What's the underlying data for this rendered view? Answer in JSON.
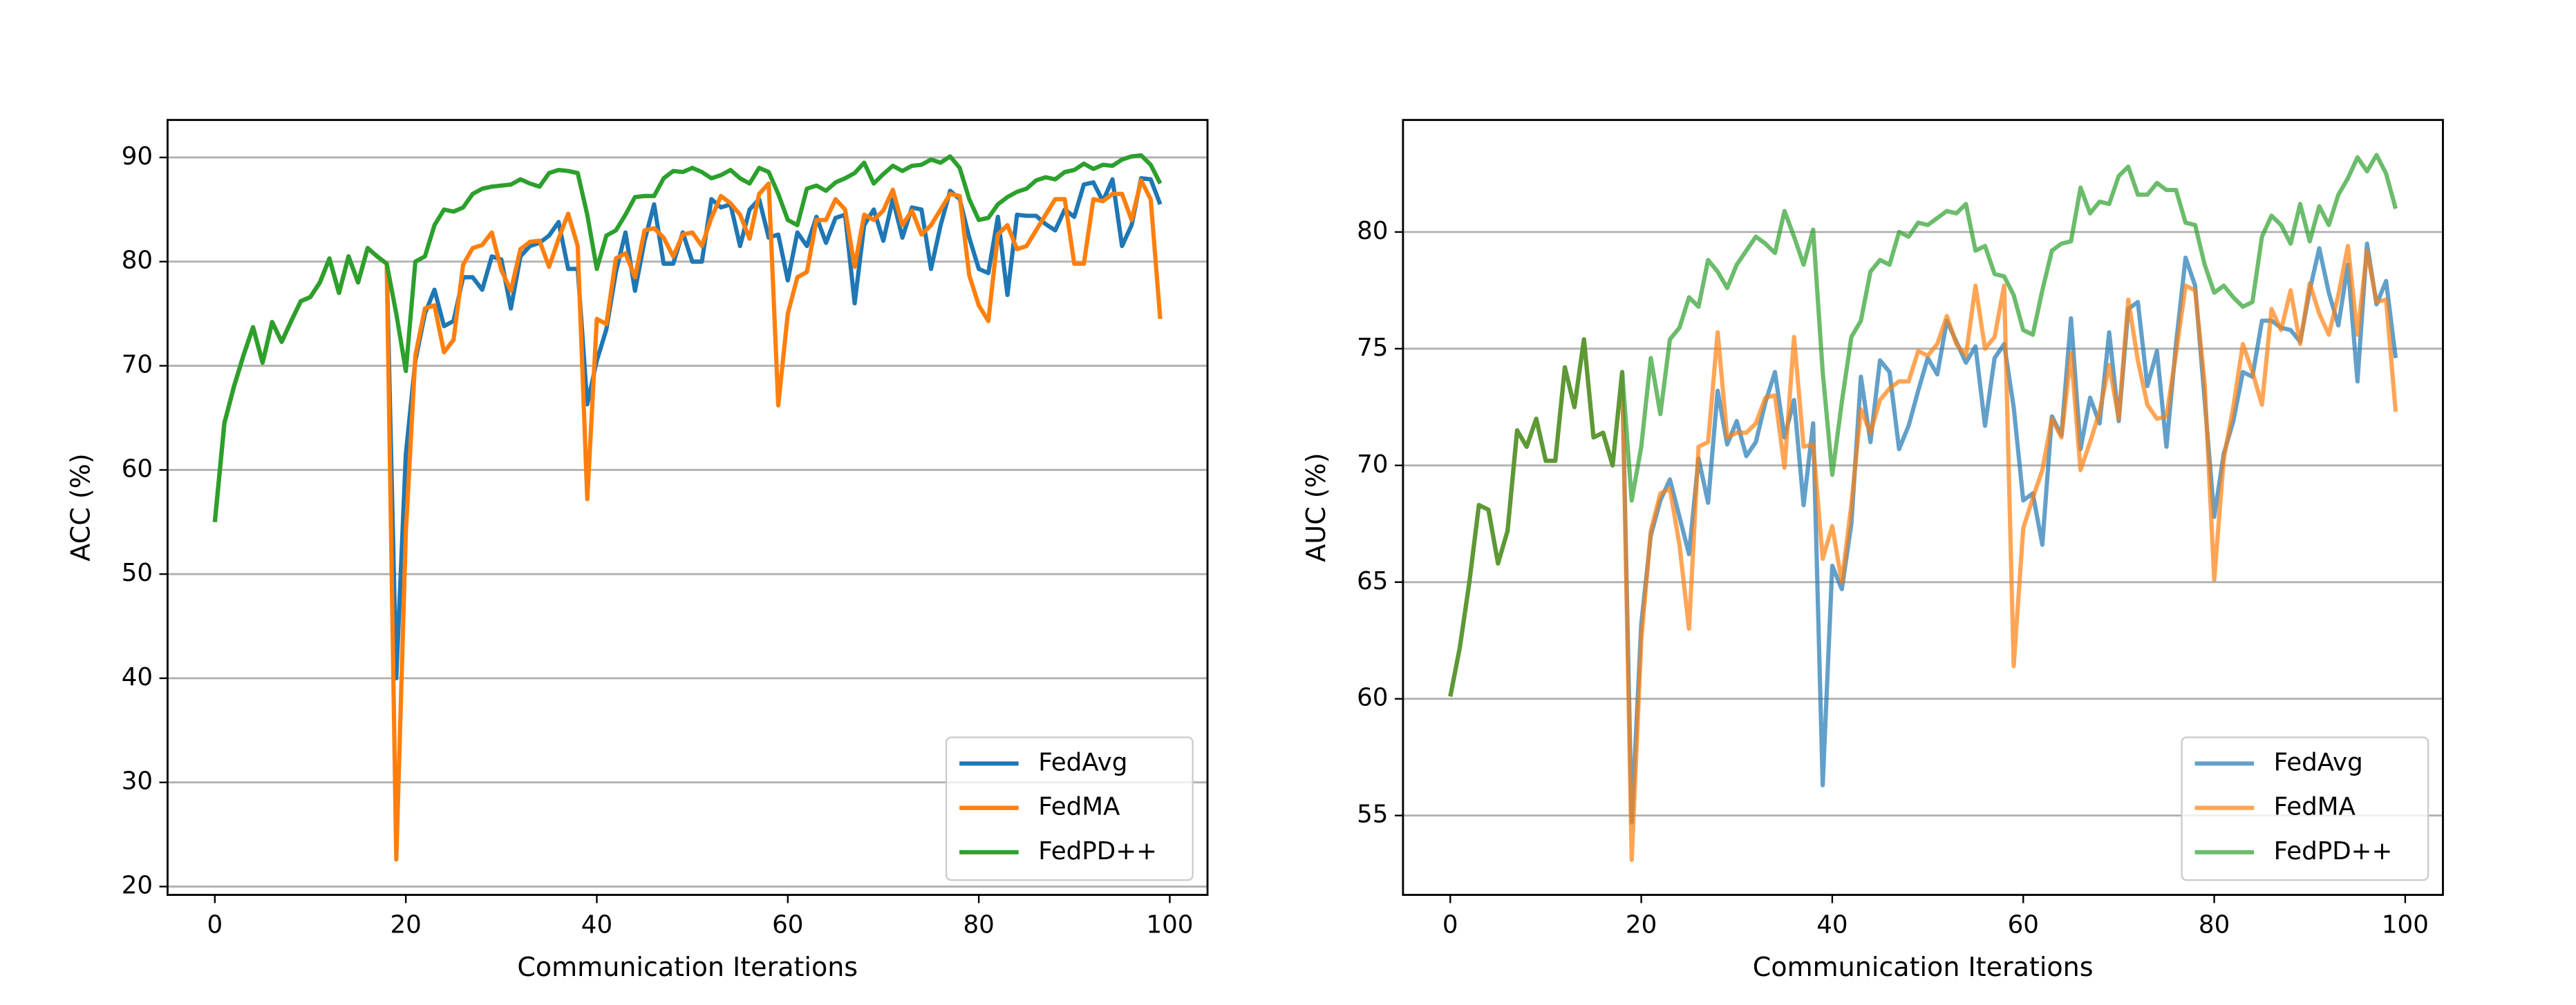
{
  "chart_data": [
    {
      "type": "line",
      "xlabel": "Communication Iterations",
      "ylabel": "ACC (%)",
      "x": [
        0,
        1,
        2,
        3,
        4,
        5,
        6,
        7,
        8,
        9,
        10,
        11,
        12,
        13,
        14,
        15,
        16,
        17,
        18,
        19,
        20,
        21,
        22,
        23,
        24,
        25,
        26,
        27,
        28,
        29,
        30,
        31,
        32,
        33,
        34,
        35,
        36,
        37,
        38,
        39,
        40,
        41,
        42,
        43,
        44,
        45,
        46,
        47,
        48,
        49,
        50,
        51,
        52,
        53,
        54,
        55,
        56,
        57,
        58,
        59,
        60,
        61,
        62,
        63,
        64,
        65,
        66,
        67,
        68,
        69,
        70,
        71,
        72,
        73,
        74,
        75,
        76,
        77,
        78,
        79,
        80,
        81,
        82,
        83,
        84,
        85,
        86,
        87,
        88,
        89,
        90,
        91,
        92,
        93,
        94,
        95,
        96,
        97,
        98,
        99
      ],
      "xlim": [
        -4.95,
        103.95
      ],
      "xticks": [
        0,
        20,
        40,
        60,
        80,
        100
      ],
      "ylim": [
        19.2,
        93.6
      ],
      "yticks": [
        20,
        30,
        40,
        50,
        60,
        70,
        80,
        90
      ],
      "grid": true,
      "legend": "lower right",
      "alpha": 1,
      "series": [
        {
          "name": "FedAvg",
          "color": "#1f77b4",
          "values": [
            55,
            64.5,
            68,
            71,
            73.7,
            70.3,
            74.2,
            72.3,
            74.3,
            76.2,
            76.6,
            78,
            80.3,
            77,
            80.5,
            78,
            81.3,
            80.5,
            79.8,
            40,
            61.5,
            70.5,
            75,
            77.3,
            73.8,
            74.3,
            78.5,
            78.5,
            77.3,
            80.5,
            80.2,
            75.5,
            80.5,
            81.5,
            81.8,
            82.5,
            83.8,
            79.3,
            79.3,
            66.3,
            70.5,
            73.5,
            79,
            82.8,
            77.2,
            82,
            85.5,
            79.8,
            79.8,
            82.8,
            80,
            80,
            86,
            85.2,
            85.5,
            81.5,
            85,
            86,
            82.3,
            82.6,
            78.2,
            82.8,
            81.5,
            84.3,
            81.8,
            84.2,
            84.5,
            76,
            83.5,
            85,
            82,
            86,
            82.3,
            85.2,
            85,
            79.3,
            83.5,
            86.8,
            86,
            82.3,
            79.3,
            78.9,
            84.3,
            76.8,
            84.5,
            84.4,
            84.4,
            83.6,
            83,
            85,
            84.3,
            87.4,
            87.6,
            85.8,
            87.9,
            81.5,
            83.5,
            88,
            87.9,
            85.5
          ]
        },
        {
          "name": "FedMA",
          "color": "#ff7f0e",
          "values": [
            55,
            64.5,
            68,
            71,
            73.7,
            70.3,
            74.2,
            72.3,
            74.3,
            76.2,
            76.6,
            78,
            80.3,
            77,
            80.5,
            78,
            81.3,
            80.5,
            79.8,
            22.6,
            54,
            71,
            75.5,
            75.8,
            71.3,
            72.5,
            79.7,
            81.3,
            81.6,
            82.8,
            79.2,
            77.2,
            81.2,
            81.9,
            82,
            79.5,
            82.2,
            84.6,
            81.5,
            57.2,
            74.5,
            74,
            80.3,
            80.8,
            78.5,
            83,
            83.2,
            82.3,
            80.5,
            82.6,
            82.8,
            81.5,
            84.2,
            86.3,
            85.6,
            84.5,
            82.2,
            86.5,
            87.5,
            66.2,
            75,
            78.5,
            79,
            84,
            84,
            86,
            85,
            79.5,
            84.5,
            84,
            84.9,
            86.9,
            83.5,
            84.9,
            82.6,
            83.5,
            85,
            86.5,
            86.3,
            78.7,
            75.8,
            74.3,
            82.6,
            83.5,
            81.2,
            81.5,
            83,
            84.5,
            86,
            86,
            79.8,
            79.8,
            86,
            85.8,
            86.5,
            86.5,
            84,
            87.8,
            86,
            74.5
          ]
        },
        {
          "name": "FedPD++",
          "color": "#2ca02c",
          "values": [
            55,
            64.5,
            68,
            71,
            73.7,
            70.3,
            74.2,
            72.3,
            74.3,
            76.2,
            76.6,
            78,
            80.3,
            77,
            80.5,
            78,
            81.3,
            80.5,
            79.8,
            75,
            69.5,
            80,
            80.5,
            83.5,
            85,
            84.8,
            85.2,
            86.5,
            87,
            87.2,
            87.3,
            87.4,
            87.9,
            87.5,
            87.2,
            88.5,
            88.8,
            88.7,
            88.5,
            84.5,
            79.3,
            82.5,
            83,
            84.5,
            86.2,
            86.3,
            86.3,
            88,
            88.7,
            88.6,
            89,
            88.6,
            88,
            88.3,
            88.8,
            88,
            87.5,
            89,
            88.6,
            86.5,
            84,
            83.5,
            87,
            87.3,
            86.8,
            87.6,
            88,
            88.5,
            89.5,
            87.5,
            88.4,
            89.2,
            88.7,
            89.2,
            89.3,
            89.8,
            89.5,
            90.1,
            89,
            86,
            84,
            84.2,
            85.5,
            86.2,
            86.7,
            87,
            87.8,
            88.1,
            87.9,
            88.6,
            88.8,
            89.4,
            88.9,
            89.3,
            89.2,
            89.8,
            90.1,
            90.2,
            89.3,
            87.5
          ]
        }
      ]
    },
    {
      "type": "line",
      "xlabel": "Communication Iterations",
      "ylabel": "AUC (%)",
      "x": [
        0,
        1,
        2,
        3,
        4,
        5,
        6,
        7,
        8,
        9,
        10,
        11,
        12,
        13,
        14,
        15,
        16,
        17,
        18,
        19,
        20,
        21,
        22,
        23,
        24,
        25,
        26,
        27,
        28,
        29,
        30,
        31,
        32,
        33,
        34,
        35,
        36,
        37,
        38,
        39,
        40,
        41,
        42,
        43,
        44,
        45,
        46,
        47,
        48,
        49,
        50,
        51,
        52,
        53,
        54,
        55,
        56,
        57,
        58,
        59,
        60,
        61,
        62,
        63,
        64,
        65,
        66,
        67,
        68,
        69,
        70,
        71,
        72,
        73,
        74,
        75,
        76,
        77,
        78,
        79,
        80,
        81,
        82,
        83,
        84,
        85,
        86,
        87,
        88,
        89,
        90,
        91,
        92,
        93,
        94,
        95,
        96,
        97,
        98,
        99
      ],
      "xlim": [
        -4.95,
        103.95
      ],
      "xticks": [
        0,
        20,
        40,
        60,
        80,
        100
      ],
      "ylim": [
        51.6,
        84.8
      ],
      "yticks": [
        55,
        60,
        65,
        70,
        75,
        80
      ],
      "grid": true,
      "legend": "lower right",
      "alpha": 0.7,
      "series": [
        {
          "name": "FedAvg",
          "color": "#1f77b4",
          "values": [
            60.1,
            62.2,
            65,
            68.3,
            68.1,
            65.8,
            67.2,
            71.5,
            70.8,
            72,
            70.2,
            70.2,
            74.2,
            72.5,
            75.4,
            71.2,
            71.4,
            70,
            74,
            54.7,
            63.2,
            67,
            68.5,
            69.4,
            67.8,
            66.2,
            70.3,
            68.4,
            73.2,
            70.9,
            71.9,
            70.4,
            71,
            72.7,
            74,
            71.2,
            72.8,
            68.3,
            71.8,
            56.3,
            65.7,
            64.7,
            67.5,
            73.8,
            71,
            74.5,
            74,
            70.7,
            71.7,
            73.2,
            74.6,
            73.9,
            76.2,
            75.3,
            74.4,
            75.1,
            71.7,
            74.6,
            75.2,
            72.5,
            68.5,
            68.8,
            66.6,
            72.1,
            71.3,
            76.3,
            70.7,
            72.9,
            71.8,
            75.7,
            71.9,
            76.7,
            77,
            73.4,
            74.9,
            70.8,
            75.2,
            78.9,
            77.7,
            72.8,
            67.8,
            70.5,
            71.9,
            74,
            73.8,
            76.2,
            76.2,
            75.9,
            75.8,
            75.3,
            77.5,
            79.3,
            77.4,
            76,
            78.6,
            73.6,
            79.5,
            76.9,
            77.9,
            74.6
          ]
        },
        {
          "name": "FedMA",
          "color": "#ff7f0e",
          "values": [
            60.1,
            62.2,
            65,
            68.3,
            68.1,
            65.8,
            67.2,
            71.5,
            70.8,
            72,
            70.2,
            70.2,
            74.2,
            72.5,
            75.4,
            71.2,
            71.4,
            70,
            74,
            53.1,
            62.5,
            67.2,
            68.8,
            69,
            66.6,
            63,
            70.8,
            71,
            75.7,
            71.2,
            71.4,
            71.4,
            71.8,
            72.9,
            73,
            69.9,
            75.5,
            70.8,
            70.9,
            66,
            67.4,
            65,
            68.3,
            72.4,
            71.4,
            72.8,
            73.3,
            73.6,
            73.6,
            74.9,
            74.7,
            75.2,
            76.4,
            75.2,
            74.7,
            77.7,
            75,
            75.5,
            77.7,
            61.4,
            67.3,
            68.6,
            69.8,
            72,
            71.2,
            74.8,
            69.8,
            71,
            72.3,
            74.3,
            72,
            77.1,
            74.5,
            72.6,
            72,
            72.1,
            74.8,
            77.7,
            77.5,
            73.5,
            65.1,
            70.3,
            72.5,
            75.2,
            74,
            72.6,
            76.7,
            75.8,
            77.5,
            75.2,
            77.8,
            76.5,
            75.6,
            77.3,
            79.4,
            75.6,
            79.2,
            77,
            77.1,
            72.3
          ]
        },
        {
          "name": "FedPD++",
          "color": "#2ca02c",
          "values": [
            60.1,
            62.2,
            65,
            68.3,
            68.1,
            65.8,
            67.2,
            71.5,
            70.8,
            72,
            70.2,
            70.2,
            74.2,
            72.5,
            75.4,
            71.2,
            71.4,
            70,
            74,
            68.5,
            70.8,
            74.6,
            72.2,
            75.4,
            75.9,
            77.2,
            76.8,
            78.8,
            78.3,
            77.6,
            78.6,
            79.2,
            79.8,
            79.5,
            79.1,
            80.9,
            79.8,
            78.6,
            80.1,
            74,
            69.6,
            72.7,
            75.5,
            76.2,
            78.3,
            78.8,
            78.6,
            80,
            79.8,
            80.4,
            80.3,
            80.6,
            80.9,
            80.8,
            81.2,
            79.2,
            79.4,
            78.2,
            78.1,
            77.3,
            75.8,
            75.6,
            77.5,
            79.2,
            79.5,
            79.6,
            81.9,
            80.8,
            81.3,
            81.2,
            82.4,
            82.8,
            81.6,
            81.6,
            82.1,
            81.8,
            81.8,
            80.4,
            80.3,
            78.6,
            77.4,
            77.7,
            77.2,
            76.8,
            77,
            79.8,
            80.7,
            80.3,
            79.5,
            81.2,
            79.6,
            81.1,
            80.3,
            81.6,
            82.3,
            83.2,
            82.6,
            83.3,
            82.5,
            81
          ]
        }
      ]
    }
  ]
}
